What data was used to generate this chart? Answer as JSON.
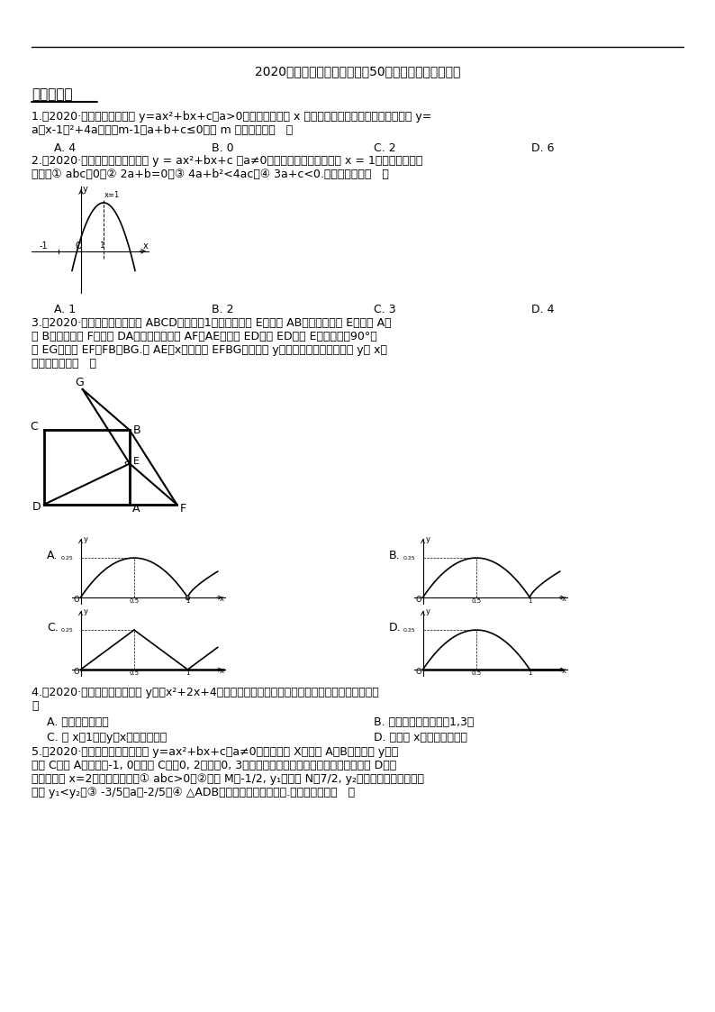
{
  "title": "2020年全国中考数学试题精选50题：二次函数及其应用",
  "section1": "一、单选题",
  "q1_line1": "1.（2020·玉林）把二次函数 y=ax²+bx+c（a>0）的图象作关于 x 轴的对称变换，所得图象的解析式为 y=",
  "q1_line2": "a（x-1）²+4a，若（m-1）a+b+c≤0，则 m 的最大值是（   ）",
  "q1_opts": [
    "A. 4",
    "B. 0",
    "C. 2",
    "D. 6"
  ],
  "q2_line1": "2.（2020·铁岭）如图，二次函数 y = ax²+bx+c （a≠0）的图象的对称轴是直线 x = 1，则以下四个结",
  "q2_line2": "论中：① abc＞0，② 2a+b=0，③ 4a+b²<4ac，④ 3a+c<0.正确的个数是（   ）",
  "q2_opts": [
    "A. 1",
    "B. 2",
    "C. 3",
    "D. 4"
  ],
  "q3_line1": "3.（2020·盘锦）如图，四边形 ABCD是边长为1的正方形，点 E是射线 AB上的动点（点 E不与点 A、",
  "q3_line2": "点 B重合），点 F在线段 DA的延长线上，且 AF＝AE，连接 ED，将 ED绕点 E顺时针旋转90°得",
  "q3_line3": "到 EG，连接 EF，FB，BG.设 AE＝x，四边形 EFBG的面积为 y，下列图象能正确反映出 y与 x的",
  "q3_line4": "函数关系的是（   ）",
  "q3_opts_labels": [
    "A.",
    "B.",
    "C.",
    "D."
  ],
  "q4_line1": "4.（2020·阜新）已知二次函数 y＝－x²+2x+4，则下列关于这个函数图象和性质的说法，正确的是（",
  "q4_line2": "）",
  "q4_opt_A": "A. 图象的开口向上",
  "q4_opt_B": "B. 图象的顶点坐标是（1,3）",
  "q4_opt_C": "C. 当 x＜1时，y随x的增大而增大",
  "q4_opt_D": "D. 图象与 x轴有唯一一交点",
  "q5_line1": "5.（2020·丹东）如图，二次函数 y=ax²+bx+c（a≠0）的图象与 X轴交于 A，B两点，与 y轴交",
  "q5_line2": "于点 C，点 A坐标为（-1, 0），点 C在（0, 2）与（0, 3）之间（不包括这两点），抛物线的顶点为 D，对",
  "q5_line3": "称轴为直线 x=2，有以下结论：① abc>0；②若点 M（-1/2, y₁），点 N（7/2, y₂）是函数图象上的两点",
  "q5_line4": "，则 y₁<y₂；③ -3/5＜a＜-2/5；④ △ADB可以是等腰直角三角形.其中正确的有（   ）",
  "bg_color": "#ffffff",
  "text_color": "#000000",
  "line_color": "#000000"
}
